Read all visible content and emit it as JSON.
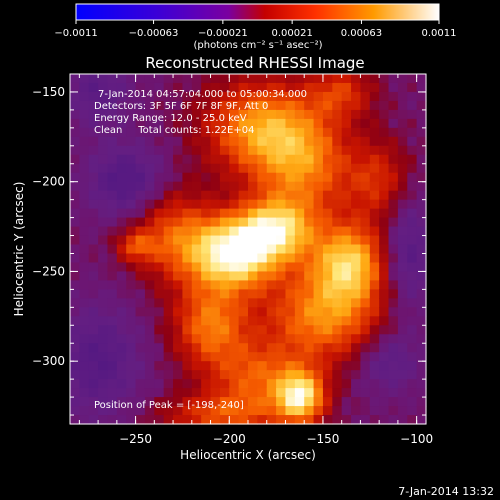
{
  "chart_data": {
    "type": "heatmap",
    "title": "Reconstructed RHESSI Image",
    "xlabel": "Heliocentric X (arcsec)",
    "ylabel": "Heliocentric Y (arcsec)",
    "xlim": [
      -285,
      -95
    ],
    "ylim": [
      -335,
      -140
    ],
    "x_ticks": [
      -250,
      -200,
      -150,
      -100
    ],
    "y_ticks": [
      -150,
      -200,
      -250,
      -300
    ],
    "colorbar": {
      "min": -0.0011,
      "max": 0.0011,
      "tick_values": [
        -0.0011,
        -0.00063,
        -0.00021,
        0.00021,
        0.00063,
        0.0011
      ],
      "tick_labels": [
        "-0.0011",
        "-0.00063",
        "-0.00021",
        "0.00021",
        "0.00063",
        "0.0011"
      ],
      "unit_label": "(photons cm⁻² s⁻¹ asec⁻²)"
    },
    "annotations": {
      "time_range": "7-Jan-2014 04:57:04.000 to 05:00:34.000",
      "detectors": "Detectors: 3F 5F 6F 7F 8F 9F, Att 0",
      "energy": "Energy Range: 12.0 - 25.0 keV",
      "clean": "Clean     Total counts: 1.22E+04",
      "peak": "Position of Peak = [-198,-240]"
    },
    "peak_position": [
      -198,
      -240
    ],
    "sources": [
      {
        "x": -198,
        "y": -240,
        "sx": 16,
        "sy": 14,
        "amp": 1.0
      },
      {
        "x": -175,
        "y": -227,
        "sx": 14,
        "sy": 12,
        "amp": 0.75
      },
      {
        "x": -136,
        "y": -245,
        "sx": 14,
        "sy": 15,
        "amp": 0.75
      },
      {
        "x": -162,
        "y": -320,
        "sx": 9,
        "sy": 10,
        "amp": 0.85
      },
      {
        "x": -185,
        "y": -170,
        "sx": 20,
        "sy": 18,
        "amp": 0.6
      },
      {
        "x": -160,
        "y": -190,
        "sx": 18,
        "sy": 22,
        "amp": 0.55
      },
      {
        "x": -210,
        "y": -280,
        "sx": 14,
        "sy": 16,
        "amp": 0.55
      },
      {
        "x": -150,
        "y": -275,
        "sx": 22,
        "sy": 18,
        "amp": 0.6
      },
      {
        "x": -230,
        "y": -230,
        "sx": 15,
        "sy": 18,
        "amp": 0.45
      },
      {
        "x": -250,
        "y": -236,
        "sx": 7,
        "sy": 6,
        "amp": 0.35
      },
      {
        "x": -185,
        "y": -310,
        "sx": 18,
        "sy": 14,
        "amp": 0.45
      },
      {
        "x": -120,
        "y": -200,
        "sx": 12,
        "sy": 16,
        "amp": 0.35
      },
      {
        "x": -140,
        "y": -150,
        "sx": 12,
        "sy": 10,
        "amp": 0.35
      },
      {
        "x": -205,
        "y": -330,
        "sx": 22,
        "sy": 8,
        "amp": 0.4
      }
    ],
    "negative_sources": [
      {
        "x": -255,
        "y": -200,
        "sx": 14,
        "sy": 14,
        "amp": 0.35
      },
      {
        "x": -270,
        "y": -300,
        "sx": 16,
        "sy": 22,
        "amp": 0.3
      },
      {
        "x": -105,
        "y": -240,
        "sx": 10,
        "sy": 24,
        "amp": 0.3
      },
      {
        "x": -270,
        "y": -150,
        "sx": 12,
        "sy": 14,
        "amp": 0.25
      },
      {
        "x": -115,
        "y": -300,
        "sx": 12,
        "sy": 12,
        "amp": 0.25
      }
    ],
    "grid": false
  },
  "footer": {
    "timestamp": "7-Jan-2014 13:32"
  },
  "colors": {
    "background": "#000000",
    "foreground": "#ffffff"
  }
}
